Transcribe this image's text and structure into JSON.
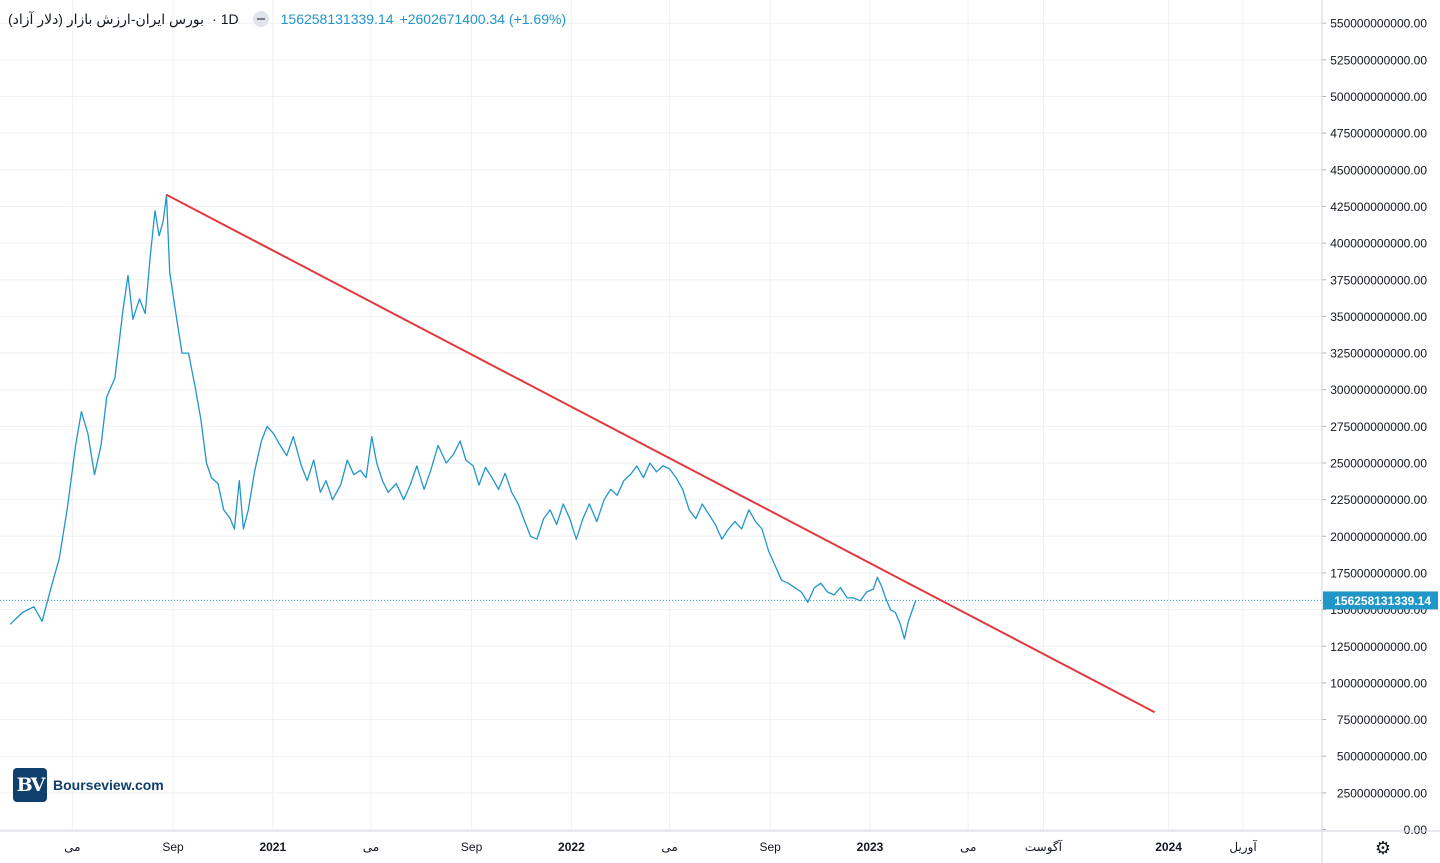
{
  "legend": {
    "title": "بورس ایران-ارزش بازار (دلار آزاد)",
    "interval": "1D",
    "separator": "·",
    "last_value": "156258131339.14",
    "change": "+2602671400.34 (+1.69%)"
  },
  "watermark": {
    "brand": "Bourseview.com",
    "mark": "BV"
  },
  "settings_icon": "gear-icon",
  "colors": {
    "price_line": "#2196c8",
    "trend_line": "#e03a3e",
    "grid": "#eef0f4",
    "axis_text": "#131722",
    "price_label_bg": "#2196c8",
    "price_label_text": "#ffffff"
  },
  "chart_data": {
    "type": "line",
    "title": "بورس ایران-ارزش بازار (دلار آزاد)",
    "ylim": [
      0,
      560000000000
    ],
    "y_ticks": [
      {
        "value": 550000000000,
        "label": "550000000000.00"
      },
      {
        "value": 525000000000,
        "label": "525000000000.00"
      },
      {
        "value": 500000000000,
        "label": "500000000000.00"
      },
      {
        "value": 475000000000,
        "label": "475000000000.00"
      },
      {
        "value": 450000000000,
        "label": "450000000000.00"
      },
      {
        "value": 425000000000,
        "label": "425000000000.00"
      },
      {
        "value": 400000000000,
        "label": "400000000000.00"
      },
      {
        "value": 375000000000,
        "label": "375000000000.00"
      },
      {
        "value": 350000000000,
        "label": "350000000000.00"
      },
      {
        "value": 325000000000,
        "label": "325000000000.00"
      },
      {
        "value": 300000000000,
        "label": "300000000000.00"
      },
      {
        "value": 275000000000,
        "label": "275000000000.00"
      },
      {
        "value": 250000000000,
        "label": "250000000000.00"
      },
      {
        "value": 225000000000,
        "label": "225000000000.00"
      },
      {
        "value": 200000000000,
        "label": "200000000000.00"
      },
      {
        "value": 175000000000,
        "label": "175000000000.00"
      },
      {
        "value": 150000000000,
        "label": "150000000000.00"
      },
      {
        "value": 125000000000,
        "label": "125000000000.00"
      },
      {
        "value": 100000000000,
        "label": "100000000000.00"
      },
      {
        "value": 75000000000,
        "label": "75000000000.00"
      },
      {
        "value": 50000000000,
        "label": "50000000000.00"
      },
      {
        "value": 25000000000,
        "label": "25000000000.00"
      },
      {
        "value": 0,
        "label": "0.00"
      }
    ],
    "x_ticks": [
      {
        "date": "2020-05-01",
        "label": "می",
        "bold": false
      },
      {
        "date": "2020-09-01",
        "label": "Sep",
        "bold": false
      },
      {
        "date": "2021-01-01",
        "label": "2021",
        "bold": true
      },
      {
        "date": "2021-05-01",
        "label": "می",
        "bold": false
      },
      {
        "date": "2021-09-01",
        "label": "Sep",
        "bold": false
      },
      {
        "date": "2022-01-01",
        "label": "2022",
        "bold": true
      },
      {
        "date": "2022-05-01",
        "label": "می",
        "bold": false
      },
      {
        "date": "2022-09-01",
        "label": "Sep",
        "bold": false
      },
      {
        "date": "2023-01-01",
        "label": "2023",
        "bold": true
      },
      {
        "date": "2023-05-01",
        "label": "می",
        "bold": false
      },
      {
        "date": "2023-08-01",
        "label": "آگوست",
        "bold": false
      },
      {
        "date": "2024-01-01",
        "label": "2024",
        "bold": true
      },
      {
        "date": "2024-04-01",
        "label": "آوریل",
        "bold": false
      }
    ],
    "current_price": {
      "value": 156258131339.14,
      "label": "156258131339.14"
    },
    "series": [
      {
        "kind": "price",
        "points": [
          [
            "2020-02-15",
            140000000000
          ],
          [
            "2020-03-01",
            148000000000
          ],
          [
            "2020-03-15",
            152000000000
          ],
          [
            "2020-03-25",
            142000000000
          ],
          [
            "2020-04-05",
            165000000000
          ],
          [
            "2020-04-15",
            185000000000
          ],
          [
            "2020-04-25",
            220000000000
          ],
          [
            "2020-05-05",
            262000000000
          ],
          [
            "2020-05-12",
            285000000000
          ],
          [
            "2020-05-20",
            270000000000
          ],
          [
            "2020-05-28",
            242000000000
          ],
          [
            "2020-06-05",
            262000000000
          ],
          [
            "2020-06-12",
            295000000000
          ],
          [
            "2020-06-22",
            308000000000
          ],
          [
            "2020-07-02",
            355000000000
          ],
          [
            "2020-07-08",
            378000000000
          ],
          [
            "2020-07-14",
            348000000000
          ],
          [
            "2020-07-22",
            362000000000
          ],
          [
            "2020-07-29",
            352000000000
          ],
          [
            "2020-08-04",
            390000000000
          ],
          [
            "2020-08-10",
            422000000000
          ],
          [
            "2020-08-15",
            405000000000
          ],
          [
            "2020-08-20",
            415000000000
          ],
          [
            "2020-08-24",
            433000000000
          ],
          [
            "2020-08-28",
            380000000000
          ],
          [
            "2020-09-05",
            350000000000
          ],
          [
            "2020-09-12",
            325000000000
          ],
          [
            "2020-09-20",
            325000000000
          ],
          [
            "2020-09-28",
            302000000000
          ],
          [
            "2020-10-05",
            280000000000
          ],
          [
            "2020-10-12",
            250000000000
          ],
          [
            "2020-10-18",
            240000000000
          ],
          [
            "2020-10-26",
            236000000000
          ],
          [
            "2020-11-02",
            218000000000
          ],
          [
            "2020-11-10",
            212000000000
          ],
          [
            "2020-11-15",
            205000000000
          ],
          [
            "2020-11-21",
            238000000000
          ],
          [
            "2020-11-26",
            205000000000
          ],
          [
            "2020-12-02",
            218000000000
          ],
          [
            "2020-12-10",
            245000000000
          ],
          [
            "2020-12-18",
            265000000000
          ],
          [
            "2020-12-25",
            275000000000
          ],
          [
            "2021-01-02",
            270000000000
          ],
          [
            "2021-01-10",
            262000000000
          ],
          [
            "2021-01-18",
            255000000000
          ],
          [
            "2021-01-26",
            268000000000
          ],
          [
            "2021-02-05",
            248000000000
          ],
          [
            "2021-02-12",
            238000000000
          ],
          [
            "2021-02-20",
            252000000000
          ],
          [
            "2021-02-28",
            230000000000
          ],
          [
            "2021-03-07",
            238000000000
          ],
          [
            "2021-03-15",
            225000000000
          ],
          [
            "2021-03-25",
            235000000000
          ],
          [
            "2021-04-02",
            252000000000
          ],
          [
            "2021-04-10",
            242000000000
          ],
          [
            "2021-04-18",
            245000000000
          ],
          [
            "2021-04-25",
            240000000000
          ],
          [
            "2021-05-02",
            268000000000
          ],
          [
            "2021-05-08",
            250000000000
          ],
          [
            "2021-05-15",
            238000000000
          ],
          [
            "2021-05-22",
            230000000000
          ],
          [
            "2021-06-01",
            236000000000
          ],
          [
            "2021-06-10",
            225000000000
          ],
          [
            "2021-06-18",
            235000000000
          ],
          [
            "2021-06-26",
            248000000000
          ],
          [
            "2021-07-05",
            232000000000
          ],
          [
            "2021-07-13",
            245000000000
          ],
          [
            "2021-07-22",
            262000000000
          ],
          [
            "2021-08-01",
            250000000000
          ],
          [
            "2021-08-10",
            256000000000
          ],
          [
            "2021-08-18",
            265000000000
          ],
          [
            "2021-08-25",
            252000000000
          ],
          [
            "2021-09-03",
            248000000000
          ],
          [
            "2021-09-10",
            235000000000
          ],
          [
            "2021-09-18",
            247000000000
          ],
          [
            "2021-09-26",
            240000000000
          ],
          [
            "2021-10-04",
            232000000000
          ],
          [
            "2021-10-12",
            243000000000
          ],
          [
            "2021-10-20",
            230000000000
          ],
          [
            "2021-10-28",
            222000000000
          ],
          [
            "2021-11-05",
            210000000000
          ],
          [
            "2021-11-12",
            200000000000
          ],
          [
            "2021-11-20",
            198000000000
          ],
          [
            "2021-11-28",
            212000000000
          ],
          [
            "2021-12-06",
            218000000000
          ],
          [
            "2021-12-14",
            208000000000
          ],
          [
            "2021-12-22",
            222000000000
          ],
          [
            "2021-12-30",
            212000000000
          ],
          [
            "2022-01-07",
            198000000000
          ],
          [
            "2022-01-15",
            212000000000
          ],
          [
            "2022-01-23",
            222000000000
          ],
          [
            "2022-02-01",
            210000000000
          ],
          [
            "2022-02-10",
            225000000000
          ],
          [
            "2022-02-18",
            232000000000
          ],
          [
            "2022-02-26",
            228000000000
          ],
          [
            "2022-03-06",
            238000000000
          ],
          [
            "2022-03-14",
            242000000000
          ],
          [
            "2022-03-22",
            248000000000
          ],
          [
            "2022-03-30",
            240000000000
          ],
          [
            "2022-04-07",
            250000000000
          ],
          [
            "2022-04-15",
            244000000000
          ],
          [
            "2022-04-23",
            248000000000
          ],
          [
            "2022-05-01",
            246000000000
          ],
          [
            "2022-05-09",
            240000000000
          ],
          [
            "2022-05-17",
            232000000000
          ],
          [
            "2022-05-25",
            218000000000
          ],
          [
            "2022-06-02",
            212000000000
          ],
          [
            "2022-06-10",
            222000000000
          ],
          [
            "2022-06-18",
            215000000000
          ],
          [
            "2022-06-26",
            208000000000
          ],
          [
            "2022-07-04",
            198000000000
          ],
          [
            "2022-07-12",
            205000000000
          ],
          [
            "2022-07-20",
            210000000000
          ],
          [
            "2022-07-28",
            205000000000
          ],
          [
            "2022-08-06",
            218000000000
          ],
          [
            "2022-08-14",
            210000000000
          ],
          [
            "2022-08-22",
            205000000000
          ],
          [
            "2022-08-30",
            190000000000
          ],
          [
            "2022-09-07",
            180000000000
          ],
          [
            "2022-09-15",
            170000000000
          ],
          [
            "2022-09-23",
            168000000000
          ],
          [
            "2022-10-01",
            165000000000
          ],
          [
            "2022-10-09",
            162000000000
          ],
          [
            "2022-10-17",
            155000000000
          ],
          [
            "2022-10-25",
            165000000000
          ],
          [
            "2022-11-02",
            168000000000
          ],
          [
            "2022-11-10",
            162000000000
          ],
          [
            "2022-11-18",
            160000000000
          ],
          [
            "2022-11-26",
            165000000000
          ],
          [
            "2022-12-04",
            158000000000
          ],
          [
            "2022-12-12",
            158000000000
          ],
          [
            "2022-12-20",
            156000000000
          ],
          [
            "2022-12-28",
            162000000000
          ],
          [
            "2023-01-05",
            164000000000
          ],
          [
            "2023-01-10",
            172000000000
          ],
          [
            "2023-01-15",
            166000000000
          ],
          [
            "2023-01-20",
            158000000000
          ],
          [
            "2023-01-26",
            150000000000
          ],
          [
            "2023-02-01",
            148000000000
          ],
          [
            "2023-02-07",
            140000000000
          ],
          [
            "2023-02-12",
            130000000000
          ],
          [
            "2023-02-17",
            142000000000
          ],
          [
            "2023-02-22",
            150000000000
          ],
          [
            "2023-02-26",
            156258131339
          ]
        ]
      },
      {
        "kind": "trendline",
        "points": [
          [
            "2020-08-24",
            433000000000
          ],
          [
            "2023-12-15",
            80000000000
          ]
        ]
      }
    ]
  }
}
